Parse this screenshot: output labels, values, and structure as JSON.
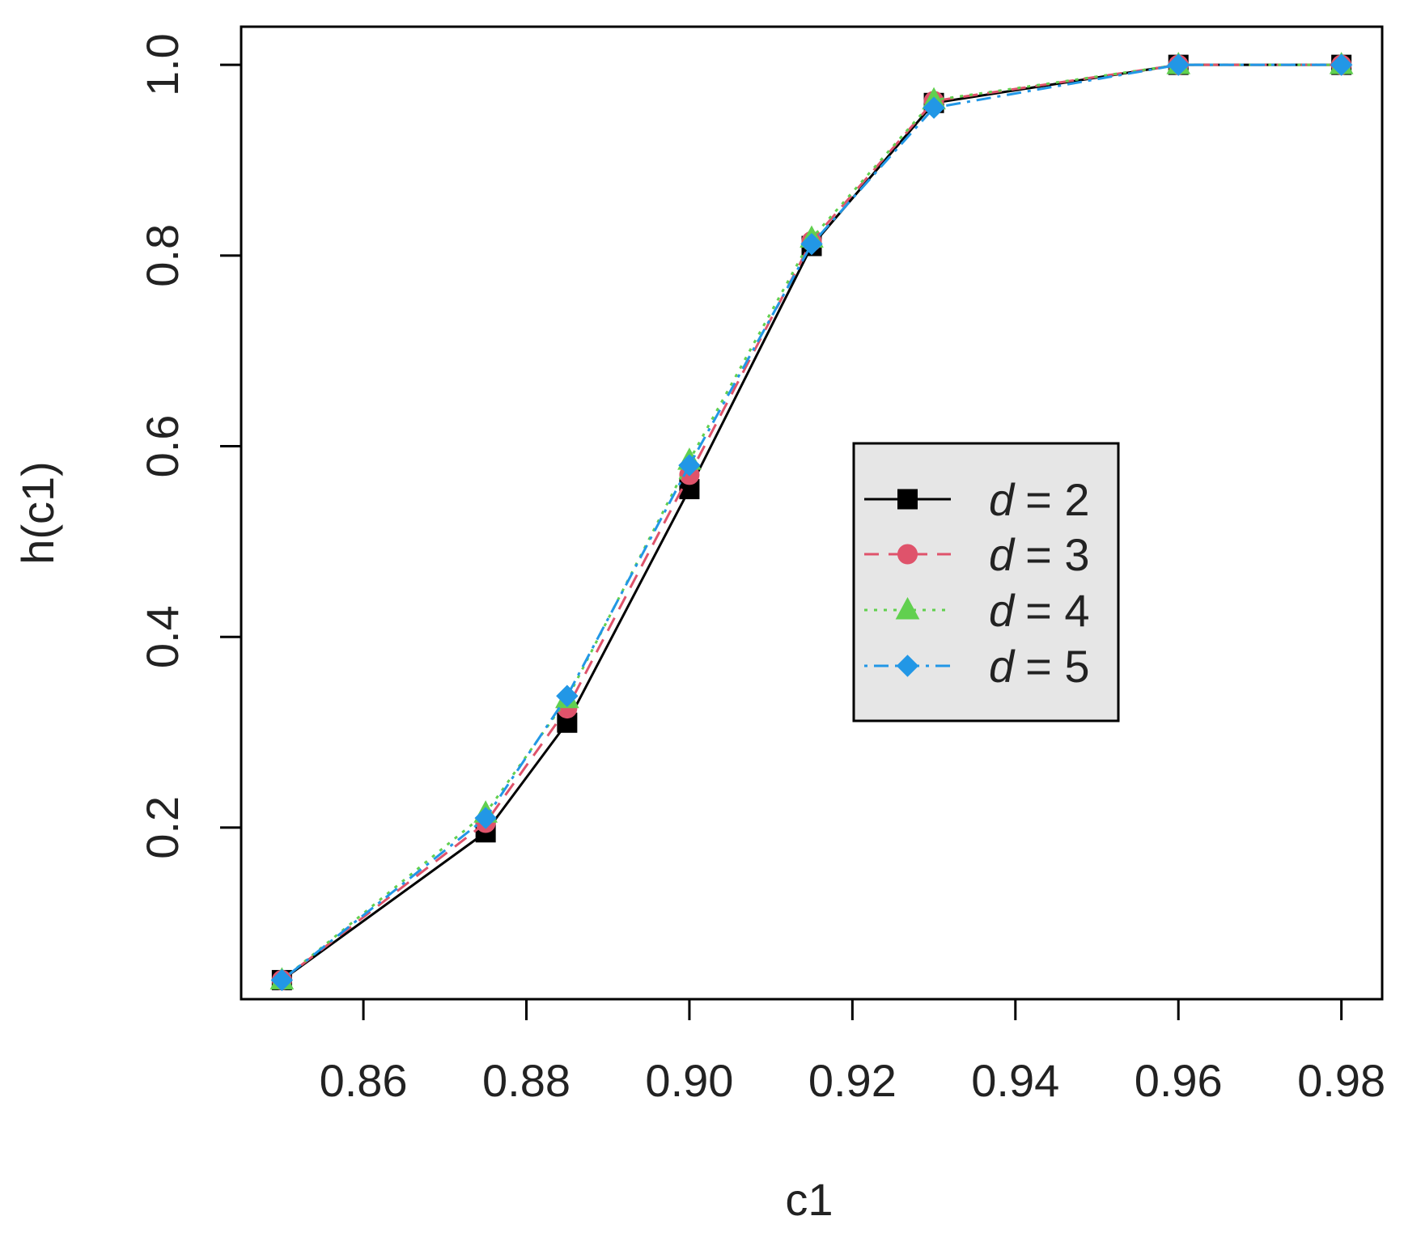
{
  "chart_data": {
    "type": "line",
    "title": "",
    "xlabel": "c1",
    "ylabel": "h(c1)",
    "xlim": [
      0.845,
      0.985
    ],
    "ylim": [
      0.02,
      1.04
    ],
    "xticks": [
      0.86,
      0.88,
      0.9,
      0.92,
      0.94,
      0.96,
      0.98
    ],
    "xtick_labels": [
      "0.86",
      "0.88",
      "0.90",
      "0.92",
      "0.94",
      "0.96",
      "0.98"
    ],
    "yticks": [
      0.2,
      0.4,
      0.6,
      0.8,
      1.0
    ],
    "ytick_labels": [
      "0.2",
      "0.4",
      "0.6",
      "0.8",
      "1.0"
    ],
    "grid": false,
    "legend_placement": "center-right",
    "x": [
      0.85,
      0.875,
      0.885,
      0.9,
      0.915,
      0.93,
      0.96,
      0.98
    ],
    "series": [
      {
        "name": "d = 2",
        "legend_var": "d",
        "legend_eq": "= 2",
        "color": "#000000",
        "line": "solid",
        "marker": "square",
        "values": [
          0.04,
          0.195,
          0.31,
          0.555,
          0.81,
          0.96,
          1.0,
          1.0
        ]
      },
      {
        "name": "d = 3",
        "legend_var": "d",
        "legend_eq": "= 3",
        "color": "#df536b",
        "line": "dashed",
        "marker": "circle",
        "values": [
          0.04,
          0.205,
          0.325,
          0.57,
          0.815,
          0.962,
          1.0,
          1.0
        ]
      },
      {
        "name": "d = 4",
        "legend_var": "d",
        "legend_eq": "= 4",
        "color": "#61d04f",
        "line": "dotted",
        "marker": "triangle",
        "values": [
          0.04,
          0.215,
          0.335,
          0.585,
          0.818,
          0.963,
          1.0,
          1.0
        ]
      },
      {
        "name": "d = 5",
        "legend_var": "d",
        "legend_eq": "= 5",
        "color": "#2297e6",
        "line": "dotdash",
        "marker": "diamond",
        "values": [
          0.04,
          0.21,
          0.338,
          0.58,
          0.812,
          0.955,
          1.0,
          1.0
        ]
      }
    ]
  }
}
